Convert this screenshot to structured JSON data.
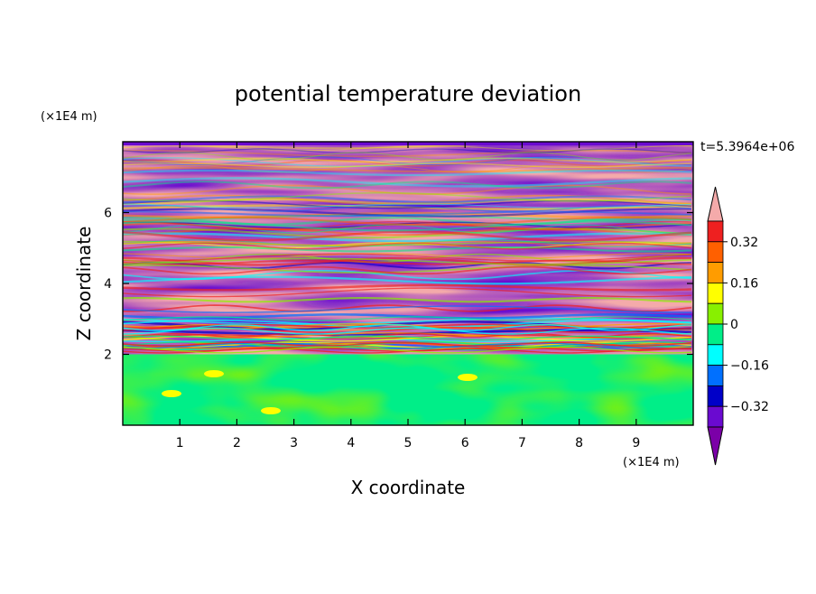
{
  "chart_data": {
    "type": "heatmap",
    "title": "potential temperature deviation",
    "xlabel": "X coordinate",
    "ylabel": "Z coordinate",
    "x_unit": "(×1E4 m)",
    "y_unit": "(×1E4 m)",
    "time_label": "t=5.3964e+06",
    "xlim": [
      0,
      10
    ],
    "ylim": [
      0,
      8
    ],
    "x_ticks": [
      1,
      2,
      3,
      4,
      5,
      6,
      7,
      8,
      9
    ],
    "y_ticks": [
      2,
      4,
      6
    ],
    "colorbar": {
      "levels": [
        -0.4,
        -0.32,
        -0.24,
        -0.16,
        -0.08,
        0,
        0.08,
        0.16,
        0.24,
        0.32,
        0.4
      ],
      "tick_labels": [
        "0.32",
        "0.16",
        "0",
        "−0.16",
        "−0.32"
      ],
      "tick_values": [
        0.32,
        0.16,
        0,
        -0.16,
        -0.32
      ],
      "colors_top_to_bottom": [
        "#f4aaaa",
        "#ee2020",
        "#ff6000",
        "#ff9c00",
        "#ffff00",
        "#88f000",
        "#00ee88",
        "#00ffff",
        "#0070ff",
        "#0000c8",
        "#6a0ad0",
        "#7b00a8"
      ]
    },
    "field_description": "Lower layer (z<2) mostly weak values between -0.08 and 0.08 with small positive patches; upper layer (z>2) strongly banded alternating near -0.4 and +0.4 with mixed transitional colors"
  }
}
